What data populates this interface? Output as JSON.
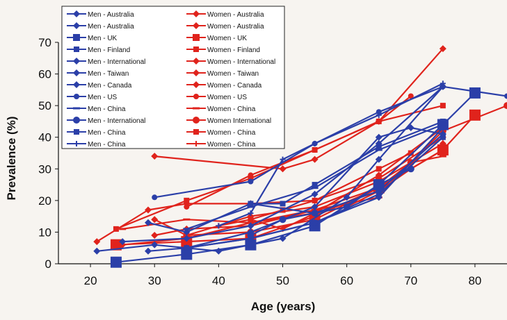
{
  "chart_data": {
    "type": "line",
    "xlabel": "Age (years)",
    "ylabel": "Prevalence (%)",
    "xlim": [
      15,
      85
    ],
    "ylim": [
      0,
      70
    ],
    "x_ticks": [
      20,
      30,
      40,
      50,
      60,
      70,
      80
    ],
    "y_ticks": [
      0,
      10,
      20,
      30,
      40,
      50,
      60,
      70
    ],
    "grid": false,
    "legend_position": "top-left",
    "colors": {
      "men": "#2b3fa8",
      "women": "#e0231c"
    },
    "series": [
      {
        "name": "Men - Australia",
        "group": "men",
        "marker": "diamond",
        "size": 5,
        "points": [
          [
            21,
            4
          ],
          [
            30,
            6
          ],
          [
            40,
            4
          ],
          [
            50,
            8
          ],
          [
            60,
            21
          ],
          [
            65,
            33
          ],
          [
            75,
            56
          ]
        ]
      },
      {
        "name": "Men - Australia",
        "group": "men",
        "marker": "diamond",
        "size": 5,
        "points": [
          [
            25,
            7
          ],
          [
            35,
            8
          ],
          [
            45,
            12
          ],
          [
            55,
            22
          ],
          [
            65,
            38
          ],
          [
            75,
            56
          ]
        ]
      },
      {
        "name": "Men - UK",
        "group": "men",
        "marker": "square",
        "size": 8,
        "points": [
          [
            24,
            0.5
          ],
          [
            35,
            3
          ],
          [
            45,
            6
          ],
          [
            55,
            12
          ],
          [
            65,
            25
          ],
          [
            75,
            44
          ],
          [
            80,
            54
          ]
        ]
      },
      {
        "name": "Men - Finland",
        "group": "men",
        "marker": "square",
        "size": 4,
        "points": [
          [
            35,
            5
          ],
          [
            45,
            8
          ],
          [
            55,
            13
          ],
          [
            65,
            22
          ],
          [
            75,
            40
          ]
        ]
      },
      {
        "name": "Men - International",
        "group": "men",
        "marker": "diamond",
        "size": 5,
        "points": [
          [
            35,
            5
          ],
          [
            45,
            10
          ],
          [
            55,
            18
          ],
          [
            65,
            40
          ],
          [
            70,
            43
          ],
          [
            75,
            41
          ]
        ]
      },
      {
        "name": "Men - Taiwan",
        "group": "men",
        "marker": "diamond",
        "size": 5,
        "points": [
          [
            29,
            13
          ],
          [
            35,
            10
          ],
          [
            45,
            19
          ],
          [
            55,
            16
          ],
          [
            65,
            23
          ],
          [
            75,
            41
          ]
        ]
      },
      {
        "name": "Men - Canada",
        "group": "men",
        "marker": "diamond",
        "size": 5,
        "points": [
          [
            29,
            4
          ],
          [
            35,
            5
          ],
          [
            45,
            8
          ],
          [
            55,
            13
          ],
          [
            65,
            21
          ],
          [
            75,
            43
          ]
        ]
      },
      {
        "name": "Men - US",
        "group": "men",
        "marker": "circle",
        "size": 4,
        "points": [
          [
            30,
            21
          ],
          [
            45,
            26
          ],
          [
            55,
            38
          ],
          [
            65,
            48
          ],
          [
            75,
            56
          ],
          [
            85,
            53
          ]
        ]
      },
      {
        "name": "Men - China",
        "group": "men",
        "marker": "dash",
        "size": 5,
        "points": [
          [
            35,
            11
          ],
          [
            45,
            18
          ],
          [
            55,
            24
          ],
          [
            65,
            36
          ],
          [
            75,
            44
          ]
        ]
      },
      {
        "name": "Men - International",
        "group": "men",
        "marker": "circle",
        "size": 5,
        "points": [
          [
            45,
            9
          ],
          [
            50,
            14
          ],
          [
            55,
            16
          ],
          [
            60,
            18
          ],
          [
            65,
            25
          ],
          [
            70,
            30
          ]
        ]
      },
      {
        "name": "Men - China",
        "group": "men",
        "marker": "square",
        "size": 4,
        "points": [
          [
            45,
            19
          ],
          [
            50,
            19
          ],
          [
            55,
            25
          ],
          [
            65,
            37
          ],
          [
            75,
            45
          ]
        ]
      },
      {
        "name": "Men - China",
        "group": "men",
        "marker": "plus",
        "size": 4,
        "points": [
          [
            40,
            12
          ],
          [
            45,
            16
          ],
          [
            50,
            33
          ],
          [
            55,
            38
          ],
          [
            65,
            47
          ],
          [
            75,
            57
          ]
        ]
      },
      {
        "name": "Women - Australia",
        "group": "women",
        "marker": "diamond",
        "size": 5,
        "points": [
          [
            21,
            7
          ],
          [
            29,
            17
          ],
          [
            35,
            19
          ],
          [
            45,
            19
          ],
          [
            55,
            20
          ],
          [
            65,
            27
          ],
          [
            75,
            40
          ]
        ]
      },
      {
        "name": "Women - Australia",
        "group": "women",
        "marker": "diamond",
        "size": 5,
        "points": [
          [
            25,
            6
          ],
          [
            35,
            8
          ],
          [
            45,
            13
          ],
          [
            55,
            16
          ],
          [
            65,
            28
          ],
          [
            75,
            43
          ]
        ]
      },
      {
        "name": "Women - UK",
        "group": "women",
        "marker": "square",
        "size": 8,
        "points": [
          [
            24,
            6
          ],
          [
            35,
            7
          ],
          [
            45,
            8
          ],
          [
            55,
            15
          ],
          [
            65,
            24
          ],
          [
            75,
            36
          ],
          [
            80,
            47
          ]
        ]
      },
      {
        "name": "Women - Finland",
        "group": "women",
        "marker": "square",
        "size": 4,
        "points": [
          [
            24,
            11
          ],
          [
            35,
            20
          ],
          [
            45,
            27
          ],
          [
            55,
            36
          ],
          [
            65,
            45
          ],
          [
            75,
            50
          ]
        ]
      },
      {
        "name": "Women - International",
        "group": "women",
        "marker": "diamond",
        "size": 5,
        "points": [
          [
            30,
            34
          ],
          [
            50,
            30
          ],
          [
            55,
            33
          ],
          [
            65,
            45
          ],
          [
            75,
            68
          ]
        ]
      },
      {
        "name": "Women - Taiwan",
        "group": "women",
        "marker": "diamond",
        "size": 5,
        "points": [
          [
            30,
            14
          ],
          [
            35,
            9
          ],
          [
            45,
            15
          ],
          [
            55,
            18
          ],
          [
            65,
            26
          ],
          [
            75,
            38
          ]
        ]
      },
      {
        "name": "Women - Canada",
        "group": "women",
        "marker": "diamond",
        "size": 5,
        "points": [
          [
            30,
            9
          ],
          [
            35,
            11
          ],
          [
            45,
            12
          ],
          [
            55,
            17
          ],
          [
            65,
            24
          ],
          [
            75,
            36
          ]
        ]
      },
      {
        "name": "Women - US",
        "group": "women",
        "marker": "circle",
        "size": 4,
        "points": [
          [
            35,
            18
          ],
          [
            45,
            28
          ],
          [
            55,
            36
          ],
          [
            65,
            45
          ],
          [
            70,
            53
          ]
        ]
      },
      {
        "name": "Women - China",
        "group": "women",
        "marker": "dash",
        "size": 5,
        "points": [
          [
            25,
            11
          ],
          [
            35,
            14
          ],
          [
            45,
            13
          ],
          [
            55,
            17
          ],
          [
            65,
            21
          ],
          [
            70,
            32
          ],
          [
            75,
            34
          ]
        ]
      },
      {
        "name": "Women International",
        "group": "women",
        "marker": "circle",
        "size": 5,
        "points": [
          [
            35,
            9
          ],
          [
            45,
            10
          ],
          [
            55,
            14
          ],
          [
            65,
            24
          ],
          [
            70,
            32
          ],
          [
            75,
            42
          ],
          [
            85,
            50
          ]
        ]
      },
      {
        "name": "Women - China",
        "group": "women",
        "marker": "square",
        "size": 4,
        "points": [
          [
            45,
            14
          ],
          [
            50,
            17
          ],
          [
            55,
            20
          ],
          [
            65,
            30
          ],
          [
            70,
            35
          ]
        ]
      },
      {
        "name": "Women - China",
        "group": "women",
        "marker": "plus",
        "size": 4,
        "points": [
          [
            40,
            12
          ],
          [
            45,
            14
          ],
          [
            50,
            11
          ],
          [
            55,
            16
          ],
          [
            60,
            18
          ],
          [
            65,
            23
          ],
          [
            70,
            30
          ]
        ]
      }
    ]
  }
}
